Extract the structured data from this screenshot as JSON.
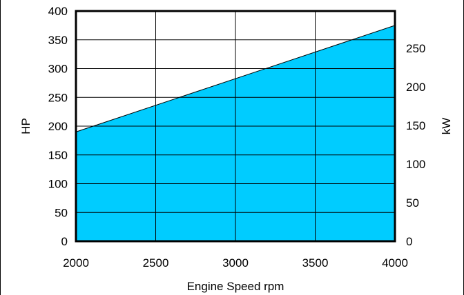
{
  "chart_data": {
    "type": "area",
    "title": "",
    "xlabel": "Engine Speed  rpm",
    "ylabel": "HP",
    "y2label": "kW",
    "xlim": [
      2000,
      4000
    ],
    "ylim": [
      0,
      400
    ],
    "y2lim": [
      0,
      298.3
    ],
    "x_ticks": [
      "2000",
      "2500",
      "3000",
      "3500",
      "4000"
    ],
    "y_ticks": [
      "0",
      "50",
      "100",
      "150",
      "200",
      "250",
      "300",
      "350",
      "400"
    ],
    "y2_ticks": [
      "0",
      "50",
      "100",
      "150",
      "200",
      "250"
    ],
    "grid": true,
    "fill_color": "#00CCFF",
    "series": [
      {
        "x": [
          2000,
          4000
        ],
        "y": [
          190,
          375
        ]
      }
    ]
  }
}
